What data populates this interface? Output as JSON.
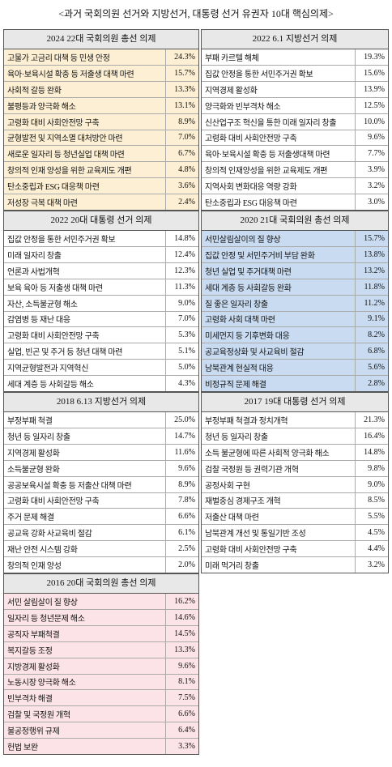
{
  "title": "<과거 국회의원 선거와 지방선거, 대통령 선거 유권자 10대 핵심의제>",
  "panels": [
    {
      "title": "2024 22대 국회의원 총선 의제",
      "color": "#fcefd4",
      "rows": [
        [
          "고물가 고금리 대책 등 민생 안정",
          "24.3%"
        ],
        [
          "육아·보육시설 확충 등 저출생 대책 마련",
          "15.7%"
        ],
        [
          "사회적 갈등 완화",
          "13.3%"
        ],
        [
          "불평등과 양극화 해소",
          "13.1%"
        ],
        [
          "고령화 대비 사회안전망 구축",
          "8.9%"
        ],
        [
          "균형발전 및 지역소멸 대처방안 마련",
          "7.0%"
        ],
        [
          "새로운 일자리 등 청년실업 대책 마련",
          "6.7%"
        ],
        [
          "창의적 인재 양성을 위한 교육제도 개편",
          "4.8%"
        ],
        [
          "탄소중립과 ESG 대응책 마련",
          "3.6%"
        ],
        [
          "저성장 극복 대책 마련",
          "2.4%"
        ]
      ]
    },
    {
      "title": "2022 6.1 지방선거 의제",
      "rows": [
        [
          "부패 카르텔 해체",
          "19.3%"
        ],
        [
          "집값 안정을 통한 서민주거권 확보",
          "15.6%"
        ],
        [
          "지역경제 활성화",
          "13.9%"
        ],
        [
          "양극화와 빈부격차 해소",
          "12.5%"
        ],
        [
          "신산업구조 혁신을 통한 미래 일자리 창출",
          "10.0%"
        ],
        [
          "고령화 대비 사회안전망 구축",
          "9.6%"
        ],
        [
          "육아·보육시설 확충 등 저출생대책 마련",
          "7.7%"
        ],
        [
          "창의적 인재양성을 위한 교육제도 개편",
          "3.9%"
        ],
        [
          "지역사회 변화대응 역량 강화",
          "3.2%"
        ],
        [
          "탄소중립과 ESG 대응책 마련",
          "3.0%"
        ]
      ]
    },
    {
      "title": "2022 20대 대통령 선거 의제",
      "rows": [
        [
          "집값 안정을 통한 서민주거권 확보",
          "14.8%"
        ],
        [
          "미래 일자리 창출",
          "12.4%"
        ],
        [
          "언론과 사법개혁",
          "12.3%"
        ],
        [
          "보육 육아 등 저출생 대책 마련",
          "11.3%"
        ],
        [
          "자산, 소득불균형 해소",
          "9.0%"
        ],
        [
          "감염병 등 재난 대응",
          "7.0%"
        ],
        [
          "고령화 대비 사회안전망 구축",
          "5.3%"
        ],
        [
          "실업, 빈곤 및 주거 등 청년 대책 마련",
          "5.1%"
        ],
        [
          "지역균형발전과 지역혁신",
          "5.0%"
        ],
        [
          "세대 계층 등 사회갈등 해소",
          "4.3%"
        ]
      ]
    },
    {
      "title": "2020 21대 국회의원 총선 의제",
      "color": "#c9dbf0",
      "rows": [
        [
          "서민살림살이의 질 향상",
          "15.7%"
        ],
        [
          "집값 안정 및 서민주거비 부담 완화",
          "13.8%"
        ],
        [
          "청년 실업 및 주거대책 마련",
          "13.2%"
        ],
        [
          "세대 계층 등 사회갈등 완화",
          "11.8%"
        ],
        [
          "질 좋은 일자리 창출",
          "11.2%"
        ],
        [
          "고령화 사회 대책 마련",
          "9.1%"
        ],
        [
          "미세먼지 등 기후변화 대응",
          "8.2%"
        ],
        [
          "공교육정상화 및 사교육비 절감",
          "6.8%"
        ],
        [
          "남북관계 현실적 대응",
          "5.6%"
        ],
        [
          "비정규직 문제 해결",
          "2.8%"
        ]
      ]
    },
    {
      "title": "2018 6.13 지방선거 의제",
      "rows": [
        [
          "부정부패 척결",
          "25.0%"
        ],
        [
          "청년 등 일자리 창출",
          "14.7%"
        ],
        [
          "지역경제 활성화",
          "11.6%"
        ],
        [
          "소득불균형 완화",
          "9.6%"
        ],
        [
          "공공보육시설 확충 등 저출산 대책 마련",
          "8.9%"
        ],
        [
          "고령화 대비 사회안전망 구축",
          "7.8%"
        ],
        [
          "주거 문제 해결",
          "6.6%"
        ],
        [
          "공교육 강화 사교육비 절감",
          "6.1%"
        ],
        [
          "재난 안전 시스템 강화",
          "2.5%"
        ],
        [
          "창의적 인재 양성",
          "2.0%"
        ]
      ]
    },
    {
      "title": "2017 19대 대통령 선거 의제",
      "rows": [
        [
          "부정부패 척결과 정치개혁",
          "21.3%"
        ],
        [
          "청년 등 일자리 창출",
          "16.4%"
        ],
        [
          "소득 불균형에 따른 사회적 양극화 해소",
          "14.8%"
        ],
        [
          "검찰 국정원 등 권력기관 개혁",
          "9.8%"
        ],
        [
          "공정사회 구현",
          "9.0%"
        ],
        [
          "재벌중심 경제구조 개혁",
          "8.5%"
        ],
        [
          "저출산 대책 마련",
          "5.5%"
        ],
        [
          "남북관계 개선 및 통일기반 조성",
          "4.5%"
        ],
        [
          "고령화 대비 사회안전망 구축",
          "4.4%"
        ],
        [
          "미래 먹거리 창출",
          "3.2%"
        ]
      ]
    },
    {
      "title": "2016 20대 국회의원 총선 의제",
      "color": "#fbe3e7",
      "rows": [
        [
          "서민 살림살이 질 향상",
          "16.2%"
        ],
        [
          "일자리 등 청년문제 해소",
          "14.6%"
        ],
        [
          "공직자 부패척결",
          "14.5%"
        ],
        [
          "복지갈등 조정",
          "13.3%"
        ],
        [
          "지방경제 활성화",
          "9.6%"
        ],
        [
          "노동시장 양극화 해소",
          "8.1%"
        ],
        [
          "빈부격차 해결",
          "7.5%"
        ],
        [
          "검찰 및 국정원 개혁",
          "6.6%"
        ],
        [
          "불공정행위 규제",
          "6.4%"
        ],
        [
          "헌법 보완",
          "3.3%"
        ]
      ]
    }
  ]
}
